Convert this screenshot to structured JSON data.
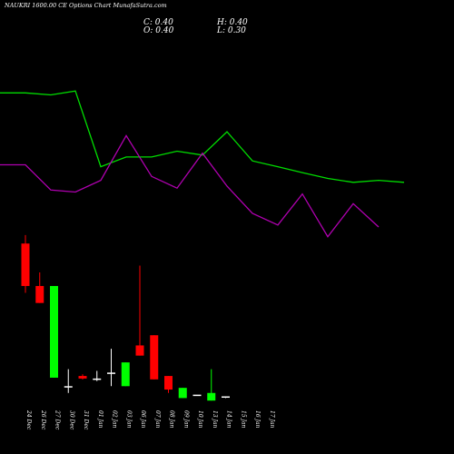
{
  "header": {
    "title": "NAUKRI 1600.00 CE Options Chart MunafaSutra.com",
    "close": "C: 0.40",
    "open": "O: 0.40",
    "high": "H: 0.40",
    "low": "L: 0.30"
  },
  "colors": {
    "background": "#000000",
    "bull": "#00ff00",
    "bear": "#ff0000",
    "doji": "#ffffff",
    "line1": "#00dd00",
    "line2": "#b000b0"
  },
  "chart_data": [
    {
      "type": "line",
      "title": "",
      "x": [
        "24 Dec",
        "26 Dec",
        "27 Dec",
        "30 Dec",
        "31 Dec",
        "01 Jan",
        "02 Jan",
        "03 Jan",
        "06 Jan",
        "07 Jan",
        "08 Jan",
        "09 Jan",
        "10 Jan",
        "13 Jan",
        "14 Jan",
        "15 Jan",
        "16 Jan",
        "17 Jan"
      ],
      "series": [
        {
          "values": [
            62,
            62,
            61,
            63,
            24,
            29,
            29,
            32,
            30,
            42,
            27,
            24,
            21,
            18,
            16,
            17,
            16,
            null
          ]
        },
        {
          "values": [
            25,
            25,
            12,
            11,
            17,
            40,
            19,
            13,
            31,
            14,
            0,
            -6,
            10,
            -12,
            5,
            -7,
            null,
            null
          ]
        }
      ]
    },
    {
      "type": "candlestick",
      "title": "",
      "categories": [
        "24 Dec",
        "26 Dec",
        "27 Dec",
        "30 Dec",
        "31 Dec",
        "01 Jan",
        "02 Jan",
        "03 Jan",
        "06 Jan",
        "07 Jan",
        "08 Jan",
        "09 Jan",
        "10 Jan",
        "13 Jan",
        "14 Jan",
        "15 Jan",
        "16 Jan",
        "17 Jan"
      ],
      "candles": [
        {
          "open": 9.4,
          "high": 9.9,
          "low": 6.5,
          "close": 6.9
        },
        {
          "open": 6.9,
          "high": 7.7,
          "low": 5.9,
          "close": 5.9
        },
        {
          "open": 1.5,
          "high": 6.9,
          "low": 1.5,
          "close": 6.9
        },
        {
          "open": 1.0,
          "high": 2.0,
          "low": 0.6,
          "close": 1.0
        },
        {
          "open": 1.6,
          "high": 1.7,
          "low": 1.4,
          "close": 1.45
        },
        {
          "open": 1.45,
          "high": 1.9,
          "low": 1.3,
          "close": 1.45
        },
        {
          "open": 1.8,
          "high": 3.2,
          "low": 1.0,
          "close": 1.8
        },
        {
          "open": 1.0,
          "high": 2.4,
          "low": 1.0,
          "close": 2.4
        },
        {
          "open": 3.4,
          "high": 8.1,
          "low": 2.8,
          "close": 2.8
        },
        {
          "open": 4.0,
          "high": 4.0,
          "low": 1.4,
          "close": 1.4
        },
        {
          "open": 1.6,
          "high": 1.6,
          "low": 0.6,
          "close": 0.8
        },
        {
          "open": 0.3,
          "high": 0.9,
          "low": 0.3,
          "close": 0.9
        },
        {
          "open": 0.5,
          "high": 0.5,
          "low": 0.5,
          "close": 0.5
        },
        {
          "open": 0.15,
          "high": 2.0,
          "low": 0.15,
          "close": 0.6
        },
        {
          "open": 0.4,
          "high": 0.4,
          "low": 0.3,
          "close": 0.4
        },
        {
          "open": null,
          "high": null,
          "low": null,
          "close": null
        },
        {
          "open": null,
          "high": null,
          "low": null,
          "close": null
        },
        {
          "open": null,
          "high": null,
          "low": null,
          "close": null
        }
      ]
    }
  ]
}
